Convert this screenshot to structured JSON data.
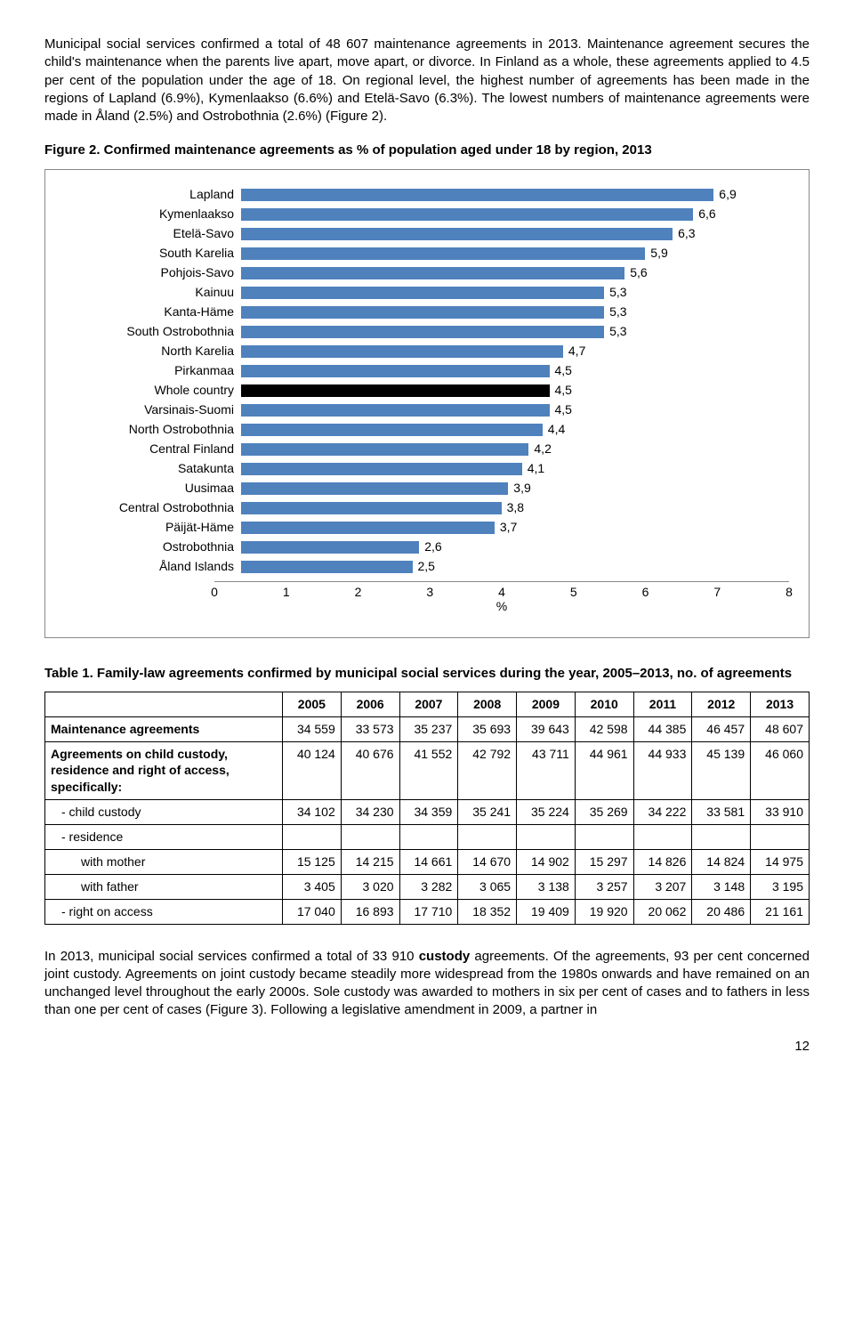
{
  "para1": "Municipal social services confirmed a total of 48 607 maintenance agreements in 2013. Maintenance agreement secures the child's maintenance when the parents live apart, move apart, or divorce. In Finland as a whole, these agreements applied to 4.5 per cent of the population under the age of 18. On regional level, the highest number of agreements has been made in the regions of Lapland (6.9%), Kymenlaakso (6.6%) and Etelä-Savo (6.3%). The lowest numbers of maintenance agreements were made in Åland (2.5%) and Ostrobothnia (2.6%) (Figure 2).",
  "figure_title": "Figure 2. Confirmed maintenance agreements as % of population aged under 18 by region, 2013",
  "chart": {
    "type": "bar",
    "bar_color": "#4f81bd",
    "highlight_color": "#000000",
    "border_color": "#888888",
    "xmax": 8,
    "xticks": [
      0,
      1,
      2,
      3,
      4,
      5,
      6,
      7,
      8
    ],
    "xaxis_label": "%",
    "bars": [
      {
        "label": "Lapland",
        "value": 6.9,
        "display": "6,9",
        "highlight": false
      },
      {
        "label": "Kymenlaakso",
        "value": 6.6,
        "display": "6,6",
        "highlight": false
      },
      {
        "label": "Etelä-Savo",
        "value": 6.3,
        "display": "6,3",
        "highlight": false
      },
      {
        "label": "South Karelia",
        "value": 5.9,
        "display": "5,9",
        "highlight": false
      },
      {
        "label": "Pohjois-Savo",
        "value": 5.6,
        "display": "5,6",
        "highlight": false
      },
      {
        "label": "Kainuu",
        "value": 5.3,
        "display": "5,3",
        "highlight": false
      },
      {
        "label": "Kanta-Häme",
        "value": 5.3,
        "display": "5,3",
        "highlight": false
      },
      {
        "label": "South Ostrobothnia",
        "value": 5.3,
        "display": "5,3",
        "highlight": false
      },
      {
        "label": "North Karelia",
        "value": 4.7,
        "display": "4,7",
        "highlight": false
      },
      {
        "label": "Pirkanmaa",
        "value": 4.5,
        "display": "4,5",
        "highlight": false
      },
      {
        "label": "Whole country",
        "value": 4.5,
        "display": "4,5",
        "highlight": true
      },
      {
        "label": "Varsinais-Suomi",
        "value": 4.5,
        "display": "4,5",
        "highlight": false
      },
      {
        "label": "North Ostrobothnia",
        "value": 4.4,
        "display": "4,4",
        "highlight": false
      },
      {
        "label": "Central Finland",
        "value": 4.2,
        "display": "4,2",
        "highlight": false
      },
      {
        "label": "Satakunta",
        "value": 4.1,
        "display": "4,1",
        "highlight": false
      },
      {
        "label": "Uusimaa",
        "value": 3.9,
        "display": "3,9",
        "highlight": false
      },
      {
        "label": "Central Ostrobothnia",
        "value": 3.8,
        "display": "3,8",
        "highlight": false
      },
      {
        "label": "Päijät-Häme",
        "value": 3.7,
        "display": "3,7",
        "highlight": false
      },
      {
        "label": "Ostrobothnia",
        "value": 2.6,
        "display": "2,6",
        "highlight": false
      },
      {
        "label": "Åland Islands",
        "value": 2.5,
        "display": "2,5",
        "highlight": false
      }
    ]
  },
  "table_title": "Table 1. Family-law agreements confirmed by municipal social services during the year, 2005–2013, no. of agreements",
  "table": {
    "columns": [
      "2005",
      "2006",
      "2007",
      "2008",
      "2009",
      "2010",
      "2011",
      "2012",
      "2013"
    ],
    "rows": [
      {
        "label": "Maintenance agreements",
        "indent": 0,
        "bold": true,
        "cells": [
          "34 559",
          "33 573",
          "35 237",
          "35 693",
          "39 643",
          "42 598",
          "44 385",
          "46 457",
          "48 607"
        ]
      },
      {
        "label": "Agreements on child custody, residence and right of access, specifically:",
        "indent": 0,
        "bold": true,
        "cells": [
          "40 124",
          "40 676",
          "41 552",
          "42 792",
          "43 711",
          "44 961",
          "44 933",
          "45 139",
          "46 060"
        ]
      },
      {
        "label": "- child custody",
        "indent": 1,
        "bold": false,
        "cells": [
          "34 102",
          "34 230",
          "34 359",
          "35 241",
          "35 224",
          "35 269",
          "34 222",
          "33 581",
          "33 910"
        ]
      },
      {
        "label": "- residence",
        "indent": 1,
        "bold": false,
        "cells": [
          "",
          "",
          "",
          "",
          "",
          "",
          "",
          "",
          ""
        ]
      },
      {
        "label": "with mother",
        "indent": 2,
        "bold": false,
        "cells": [
          "15 125",
          "14 215",
          "14 661",
          "14 670",
          "14 902",
          "15 297",
          "14 826",
          "14 824",
          "14 975"
        ]
      },
      {
        "label": "with father",
        "indent": 2,
        "bold": false,
        "cells": [
          "3 405",
          "3 020",
          "3 282",
          "3 065",
          "3 138",
          "3 257",
          "3 207",
          "3 148",
          "3 195"
        ]
      },
      {
        "label": "- right on access",
        "indent": 1,
        "bold": false,
        "cells": [
          "17 040",
          "16 893",
          "17 710",
          "18 352",
          "19 409",
          "19 920",
          "20 062",
          "20 486",
          "21 161"
        ]
      }
    ]
  },
  "para2": "In 2013, municipal social services confirmed a total of 33 910 custody agreements. Of the agreements, 93 per cent concerned joint custody. Agreements on joint custody became steadily more widespread from the 1980s onwards and have remained on an unchanged level throughout the early 2000s. Sole custody was awarded to mothers in six per cent of cases and to fathers in less than one per cent of cases (Figure 3).  Following a legislative amendment in 2009, a partner in",
  "custody_word": "custody",
  "page_number": "12"
}
